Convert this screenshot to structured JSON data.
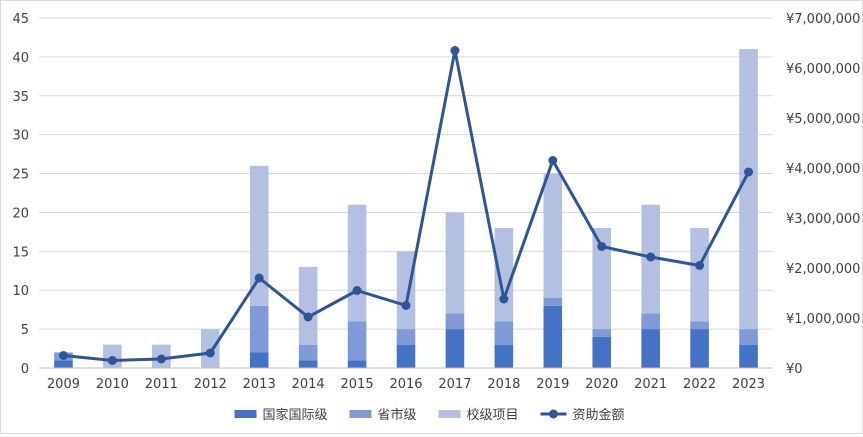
{
  "chart_data": {
    "type": "bar",
    "stacked": true,
    "categories": [
      "2009",
      "2010",
      "2011",
      "2012",
      "2013",
      "2014",
      "2015",
      "2016",
      "2017",
      "2018",
      "2019",
      "2020",
      "2021",
      "2022",
      "2023"
    ],
    "series": [
      {
        "name": "国家国际级",
        "kind": "bar",
        "axis": "left",
        "color": "#4472c4",
        "values": [
          1,
          0,
          0,
          0,
          2,
          1,
          1,
          3,
          5,
          3,
          8,
          4,
          5,
          5,
          3
        ]
      },
      {
        "name": "省市级",
        "kind": "bar",
        "axis": "left",
        "color": "#7f9ad6",
        "values": [
          1,
          0,
          0,
          0,
          6,
          2,
          5,
          2,
          2,
          3,
          1,
          1,
          2,
          1,
          2
        ]
      },
      {
        "name": "校级项目",
        "kind": "bar",
        "axis": "left",
        "color": "#b4c0e2",
        "values": [
          0,
          3,
          3,
          5,
          18,
          10,
          15,
          10,
          13,
          12,
          16,
          13,
          14,
          12,
          36
        ]
      },
      {
        "name": "资助金额",
        "kind": "line",
        "axis": "right",
        "color": "#2f5597",
        "values": [
          250000,
          150000,
          180000,
          300000,
          1800000,
          1020000,
          1550000,
          1250000,
          6350000,
          1380000,
          4150000,
          2430000,
          2220000,
          2050000,
          3920000
        ]
      }
    ],
    "y_left": {
      "ylim": [
        0,
        45
      ],
      "ticks": [
        "0",
        "5",
        "10",
        "15",
        "20",
        "25",
        "30",
        "35",
        "40",
        "45"
      ]
    },
    "y_right": {
      "ylim": [
        0,
        7000000
      ],
      "ticks": [
        "¥0",
        "¥1,000,000",
        "¥2,000,000",
        "¥3,000,000",
        "¥4,000,000",
        "¥5,000,000",
        "¥6,000,000",
        "¥7,000,000"
      ]
    },
    "grid": true,
    "legend": "bottom",
    "axis_color": "#bfbfbf",
    "grid_color": "#d9d9d9"
  }
}
